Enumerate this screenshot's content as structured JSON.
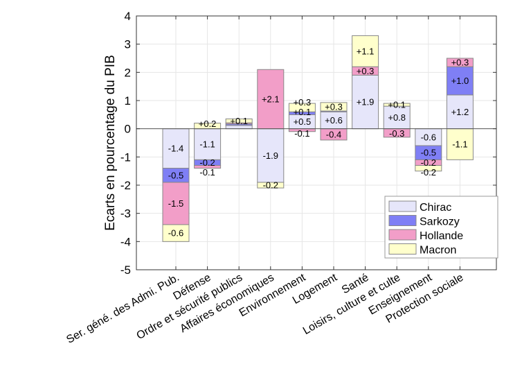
{
  "chart_data": {
    "type": "bar",
    "stacked": true,
    "title": "",
    "xlabel": "",
    "ylabel": "Ecarts en pourcentage du PIB",
    "ylim": [
      -5,
      4
    ],
    "yticks": [
      -5,
      -4,
      -3,
      -2,
      -1,
      0,
      1,
      2,
      3,
      4
    ],
    "grid": true,
    "legend_position": "bottom-right",
    "categories": [
      "Ser. géné. des Admi. Pub.",
      "Défense",
      "Ordre et sécurité publics",
      "Affaires économiques",
      "Environnement",
      "Logement",
      "Santé",
      "Loisirs, culture et culte",
      "Enseignement",
      "Protection sociale"
    ],
    "series": [
      {
        "name": "Chirac",
        "color": "#e6e6fa",
        "values": [
          -1.4,
          -1.1,
          0.12,
          -1.9,
          0.5,
          0.6,
          1.9,
          0.8,
          -0.6,
          1.2
        ],
        "labels": [
          "-1.4",
          "-1.1",
          null,
          "-1.9",
          "+0.5",
          "+0.6",
          "+1.9",
          "+0.8",
          "-0.6",
          "+1.2"
        ]
      },
      {
        "name": "Sarkozy",
        "color": "#7f7ff5",
        "values": [
          -0.5,
          -0.2,
          0.05,
          0,
          0.1,
          0.03,
          0,
          0,
          -0.5,
          1.0
        ],
        "labels": [
          "-0.5",
          "-0.2",
          null,
          null,
          "+0.1",
          null,
          null,
          null,
          "-0.5",
          "+1.0"
        ]
      },
      {
        "name": "Hollande",
        "color": "#f29ec8",
        "values": [
          -1.5,
          -0.1,
          0.04,
          2.1,
          -0.1,
          -0.4,
          0.3,
          -0.3,
          -0.2,
          0.3
        ],
        "labels": [
          "-1.5",
          "-0.1",
          null,
          "+2.1",
          "-0.1",
          "-0.4",
          "+0.3",
          "-0.3",
          "-0.2",
          "+0.3"
        ]
      },
      {
        "name": "Macron",
        "color": "#ffffcc",
        "values": [
          -0.6,
          0.2,
          0.14,
          -0.2,
          0.3,
          0.3,
          1.1,
          0.1,
          -0.2,
          -1.1
        ],
        "labels": [
          "-0.6",
          "+0.2",
          "+0.1",
          "-0.2",
          "+0.3",
          "+0.3",
          "+1.1",
          "+0.1",
          "-0.2",
          "-1.1"
        ]
      }
    ]
  }
}
